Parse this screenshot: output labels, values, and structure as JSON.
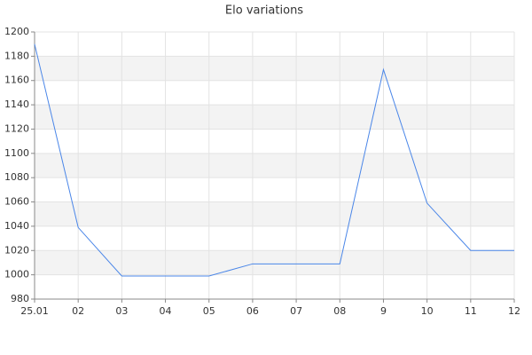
{
  "chart_data": {
    "type": "line",
    "title": "Elo variations",
    "categories": [
      "25.01",
      "02",
      "03",
      "04",
      "05",
      "06",
      "07",
      "08",
      "9",
      "10",
      "11",
      "12"
    ],
    "values": [
      1190,
      1039,
      999,
      999,
      999,
      1009,
      1009,
      1009,
      1169,
      1059,
      1020,
      1020
    ],
    "color": "#4a86e8",
    "ylim": [
      980,
      1200
    ],
    "yticks": [
      980,
      1000,
      1020,
      1040,
      1060,
      1080,
      1100,
      1120,
      1140,
      1160,
      1180,
      1200
    ],
    "grid": true
  }
}
